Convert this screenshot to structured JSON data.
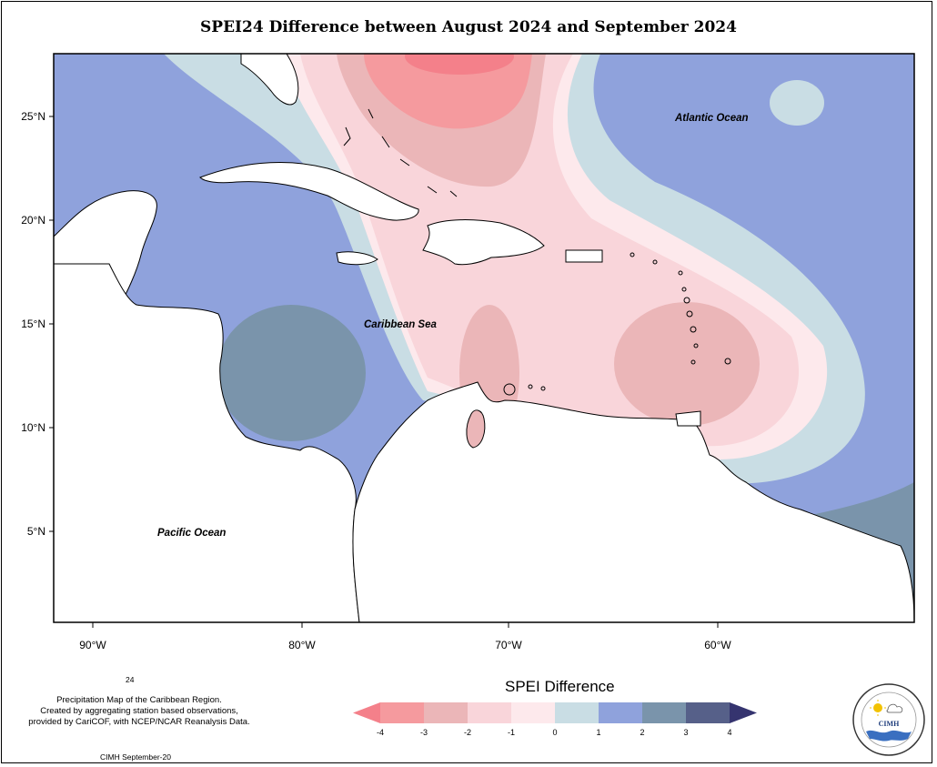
{
  "title": "SPEI24 Difference between August 2024 and September 2024",
  "map": {
    "lat_labels": [
      "25°N",
      "20°N",
      "15°N",
      "10°N",
      "5°N"
    ],
    "lon_labels": [
      "90°W",
      "80°W",
      "70°W",
      "60°W"
    ],
    "ocean_labels": {
      "atlantic": "Atlantic Ocean",
      "caribbean": "Caribbean Sea",
      "pacific": "Pacific Ocean"
    }
  },
  "legend": {
    "title": "SPEI Difference",
    "ticks": [
      "-4",
      "-3",
      "-2",
      "-1",
      "0",
      "1",
      "2",
      "3",
      "4"
    ],
    "bins": [
      {
        "range": "< -4",
        "color": "#f4808a"
      },
      {
        "range": "-4 to -3",
        "color": "#f59a9e"
      },
      {
        "range": "-3 to -2",
        "color": "#ebb6b8"
      },
      {
        "range": "-2 to -1",
        "color": "#f9d5da"
      },
      {
        "range": "-1 to 0",
        "color": "#fde9ec"
      },
      {
        "range": "0 to 1",
        "color": "#c9dde4"
      },
      {
        "range": "1 to 2",
        "color": "#8fa2dc"
      },
      {
        "range": "2 to 3",
        "color": "#7a94ab"
      },
      {
        "range": "3 to 4",
        "color": "#566089"
      },
      {
        "range": "> 4",
        "color": "#35346f"
      }
    ]
  },
  "notes": {
    "number": "24",
    "description": "Precipitation Map of the Caribbean Region.\nCreated by aggregating station based observations,\nprovided by CariCOF, with NCEP/NCAR Reanalysis Data.",
    "date": "CIMH September-20"
  },
  "logo": {
    "text": "CIMH"
  }
}
